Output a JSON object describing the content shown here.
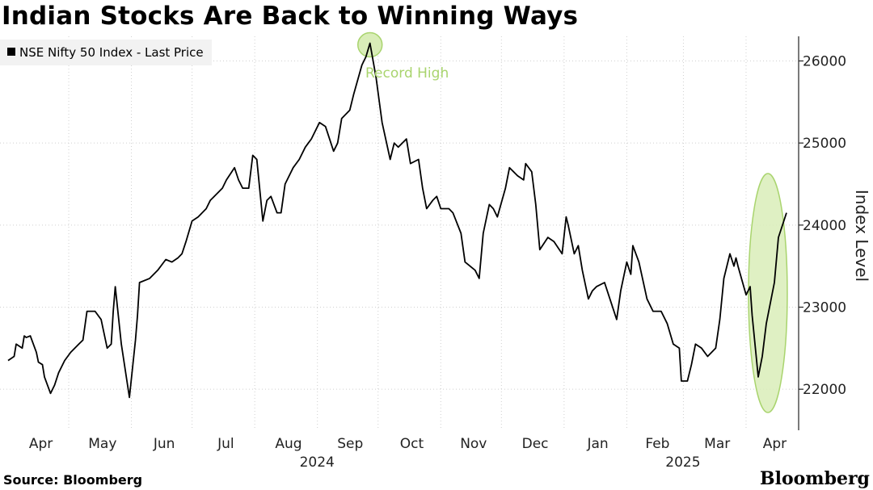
{
  "title": "Indian Stocks Are Back to Winning Ways",
  "legend": {
    "label": "NSE Nifty 50 Index - Last Price"
  },
  "annotation": {
    "label": "Record High"
  },
  "source": "Source: Bloomberg",
  "brand": "Bloomberg",
  "colors": {
    "line": "#000000",
    "highlight_fill": "#d9edb8",
    "highlight_stroke": "#a9d46e",
    "annotation_text": "#a9d46e"
  },
  "chart_data": {
    "type": "line",
    "title": "Indian Stocks Are Back to Winning Ways",
    "ylabel": "Index Level",
    "ylim": [
      21500,
      26300
    ],
    "yticks": [
      22000,
      23000,
      24000,
      25000,
      26000
    ],
    "x_month_labels": [
      "Apr",
      "May",
      "Jun",
      "Jul",
      "Aug",
      "Sep",
      "Oct",
      "Nov",
      "Dec",
      "Jan",
      "Feb",
      "Mar",
      "Apr"
    ],
    "x_year_labels": [
      "2024",
      "2025"
    ],
    "grid": "horizontal dotted",
    "legend_position": "top-left",
    "annotations": [
      {
        "text": "Record High",
        "x": "2024-09-27",
        "y": 26216
      }
    ],
    "series": [
      {
        "name": "NSE Nifty 50 Index - Last Price",
        "points": [
          [
            "2024-04-01",
            22350
          ],
          [
            "2024-04-04",
            22400
          ],
          [
            "2024-04-05",
            22550
          ],
          [
            "2024-04-08",
            22500
          ],
          [
            "2024-04-09",
            22650
          ],
          [
            "2024-04-10",
            22630
          ],
          [
            "2024-04-12",
            22650
          ],
          [
            "2024-04-15",
            22450
          ],
          [
            "2024-04-16",
            22330
          ],
          [
            "2024-04-18",
            22300
          ],
          [
            "2024-04-19",
            22150
          ],
          [
            "2024-04-22",
            21950
          ],
          [
            "2024-04-24",
            22050
          ],
          [
            "2024-04-26",
            22200
          ],
          [
            "2024-04-29",
            22350
          ],
          [
            "2024-05-02",
            22450
          ],
          [
            "2024-05-06",
            22550
          ],
          [
            "2024-05-08",
            22600
          ],
          [
            "2024-05-10",
            22950
          ],
          [
            "2024-05-14",
            22950
          ],
          [
            "2024-05-17",
            22850
          ],
          [
            "2024-05-20",
            22500
          ],
          [
            "2024-05-22",
            22550
          ],
          [
            "2024-05-23",
            22950
          ],
          [
            "2024-05-24",
            23250
          ],
          [
            "2024-05-27",
            22550
          ],
          [
            "2024-05-31",
            21900
          ],
          [
            "2024-06-03",
            22600
          ],
          [
            "2024-06-04",
            22900
          ],
          [
            "2024-06-05",
            23300
          ],
          [
            "2024-06-10",
            23350
          ],
          [
            "2024-06-14",
            23450
          ],
          [
            "2024-06-18",
            23580
          ],
          [
            "2024-06-21",
            23550
          ],
          [
            "2024-06-24",
            23600
          ],
          [
            "2024-06-26",
            23650
          ],
          [
            "2024-06-28",
            23800
          ],
          [
            "2024-07-01",
            24050
          ],
          [
            "2024-07-04",
            24100
          ],
          [
            "2024-07-08",
            24200
          ],
          [
            "2024-07-10",
            24300
          ],
          [
            "2024-07-12",
            24350
          ],
          [
            "2024-07-16",
            24450
          ],
          [
            "2024-07-18",
            24550
          ],
          [
            "2024-07-22",
            24700
          ],
          [
            "2024-07-24",
            24550
          ],
          [
            "2024-07-26",
            24450
          ],
          [
            "2024-07-29",
            24450
          ],
          [
            "2024-07-31",
            24850
          ],
          [
            "2024-08-02",
            24800
          ],
          [
            "2024-08-05",
            24050
          ],
          [
            "2024-08-07",
            24300
          ],
          [
            "2024-08-09",
            24350
          ],
          [
            "2024-08-12",
            24150
          ],
          [
            "2024-08-14",
            24150
          ],
          [
            "2024-08-16",
            24500
          ],
          [
            "2024-08-20",
            24700
          ],
          [
            "2024-08-23",
            24800
          ],
          [
            "2024-08-26",
            24950
          ],
          [
            "2024-08-29",
            25050
          ],
          [
            "2024-09-02",
            25250
          ],
          [
            "2024-09-05",
            25200
          ],
          [
            "2024-09-09",
            24900
          ],
          [
            "2024-09-11",
            25000
          ],
          [
            "2024-09-13",
            25300
          ],
          [
            "2024-09-17",
            25400
          ],
          [
            "2024-09-19",
            25600
          ],
          [
            "2024-09-23",
            25950
          ],
          [
            "2024-09-25",
            26050
          ],
          [
            "2024-09-27",
            26216
          ],
          [
            "2024-09-30",
            25800
          ],
          [
            "2024-10-03",
            25250
          ],
          [
            "2024-10-07",
            24800
          ],
          [
            "2024-10-09",
            25000
          ],
          [
            "2024-10-11",
            24950
          ],
          [
            "2024-10-15",
            25050
          ],
          [
            "2024-10-17",
            24750
          ],
          [
            "2024-10-21",
            24800
          ],
          [
            "2024-10-23",
            24450
          ],
          [
            "2024-10-25",
            24200
          ],
          [
            "2024-10-28",
            24300
          ],
          [
            "2024-10-30",
            24350
          ],
          [
            "2024-11-01",
            24200
          ],
          [
            "2024-11-05",
            24200
          ],
          [
            "2024-11-07",
            24150
          ],
          [
            "2024-11-11",
            23900
          ],
          [
            "2024-11-13",
            23550
          ],
          [
            "2024-11-18",
            23450
          ],
          [
            "2024-11-20",
            23350
          ],
          [
            "2024-11-22",
            23900
          ],
          [
            "2024-11-25",
            24250
          ],
          [
            "2024-11-27",
            24200
          ],
          [
            "2024-11-29",
            24100
          ],
          [
            "2024-12-03",
            24450
          ],
          [
            "2024-12-05",
            24700
          ],
          [
            "2024-12-09",
            24600
          ],
          [
            "2024-12-12",
            24550
          ],
          [
            "2024-12-13",
            24750
          ],
          [
            "2024-12-16",
            24650
          ],
          [
            "2024-12-18",
            24250
          ],
          [
            "2024-12-20",
            23700
          ],
          [
            "2024-12-24",
            23850
          ],
          [
            "2024-12-27",
            23800
          ],
          [
            "2024-12-31",
            23650
          ],
          [
            "2025-01-02",
            24100
          ],
          [
            "2025-01-03",
            24000
          ],
          [
            "2025-01-06",
            23650
          ],
          [
            "2025-01-08",
            23750
          ],
          [
            "2025-01-10",
            23450
          ],
          [
            "2025-01-13",
            23100
          ],
          [
            "2025-01-15",
            23200
          ],
          [
            "2025-01-17",
            23250
          ],
          [
            "2025-01-21",
            23300
          ],
          [
            "2025-01-23",
            23150
          ],
          [
            "2025-01-27",
            22850
          ],
          [
            "2025-01-29",
            23200
          ],
          [
            "2025-02-01",
            23550
          ],
          [
            "2025-02-03",
            23400
          ],
          [
            "2025-02-04",
            23750
          ],
          [
            "2025-02-07",
            23550
          ],
          [
            "2025-02-11",
            23100
          ],
          [
            "2025-02-14",
            22950
          ],
          [
            "2025-02-18",
            22950
          ],
          [
            "2025-02-21",
            22800
          ],
          [
            "2025-02-24",
            22550
          ],
          [
            "2025-02-27",
            22500
          ],
          [
            "2025-02-28",
            22100
          ],
          [
            "2025-03-03",
            22100
          ],
          [
            "2025-03-05",
            22300
          ],
          [
            "2025-03-07",
            22550
          ],
          [
            "2025-03-10",
            22500
          ],
          [
            "2025-03-13",
            22400
          ],
          [
            "2025-03-17",
            22500
          ],
          [
            "2025-03-19",
            22850
          ],
          [
            "2025-03-21",
            23350
          ],
          [
            "2025-03-24",
            23650
          ],
          [
            "2025-03-26",
            23500
          ],
          [
            "2025-03-27",
            23600
          ],
          [
            "2025-03-28",
            23500
          ],
          [
            "2025-04-01",
            23150
          ],
          [
            "2025-04-03",
            23250
          ],
          [
            "2025-04-04",
            22900
          ],
          [
            "2025-04-07",
            22150
          ],
          [
            "2025-04-09",
            22400
          ],
          [
            "2025-04-11",
            22800
          ],
          [
            "2025-04-15",
            23300
          ],
          [
            "2025-04-17",
            23850
          ],
          [
            "2025-04-21",
            24150
          ]
        ]
      }
    ]
  }
}
